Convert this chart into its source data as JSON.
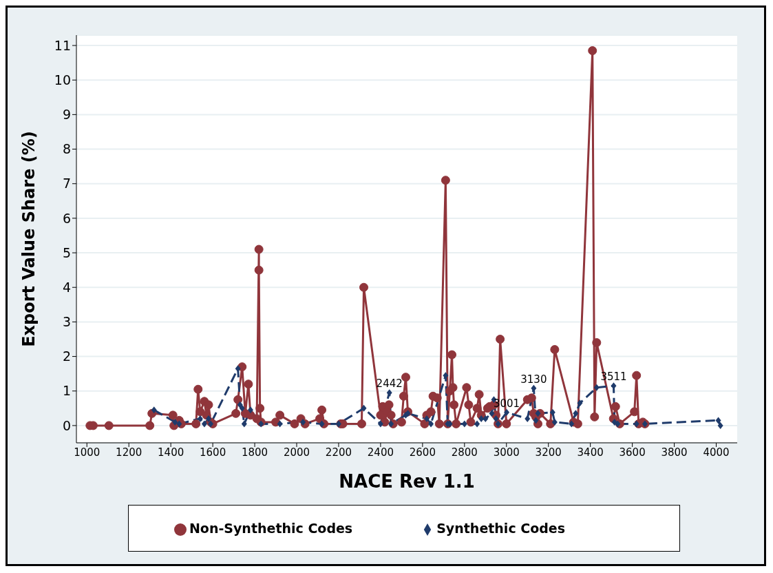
{
  "chart_data": {
    "type": "line",
    "xlabel": "NACE Rev 1.1",
    "ylabel": "Export Value Share  (%)",
    "xlim": [
      950,
      4100
    ],
    "xticks": [
      1000,
      1200,
      1400,
      1600,
      1800,
      2000,
      2200,
      2400,
      2600,
      2800,
      3000,
      3200,
      3400,
      3600,
      3800,
      4000
    ],
    "ylim": [
      -0.5,
      11.3
    ],
    "yticks": [
      0,
      1,
      2,
      3,
      4,
      5,
      6,
      7,
      8,
      9,
      10,
      11
    ],
    "grid": "y",
    "legend": "bottom",
    "series": [
      {
        "name": "Non-Synthethic Codes",
        "color": "#90353b",
        "marker": "circle",
        "line_style": "solid",
        "x": [
          1015,
          1030,
          1105,
          1300,
          1310,
          1410,
          1415,
          1440,
          1450,
          1520,
          1530,
          1540,
          1560,
          1570,
          1580,
          1590,
          1600,
          1710,
          1720,
          1740,
          1755,
          1770,
          1780,
          1810,
          1820,
          1820,
          1825,
          1830,
          1900,
          1920,
          1990,
          2020,
          2040,
          2110,
          2120,
          2130,
          2210,
          2220,
          2310,
          2320,
          2400,
          2410,
          2420,
          2430,
          2440,
          2450,
          2460,
          2500,
          2510,
          2520,
          2530,
          2610,
          2620,
          2640,
          2650,
          2670,
          2680,
          2710,
          2720,
          2730,
          2740,
          2745,
          2750,
          2760,
          2810,
          2820,
          2830,
          2860,
          2870,
          2880,
          2910,
          2920,
          2940,
          2950,
          2960,
          2970,
          3000,
          3100,
          3120,
          3130,
          3140,
          3150,
          3160,
          3210,
          3230,
          3320,
          3340,
          3410,
          3420,
          3430,
          3510,
          3520,
          3540,
          3610,
          3620,
          3630,
          3650,
          3660
        ],
        "values": [
          0,
          0,
          0,
          0,
          0.35,
          0.3,
          0,
          0.15,
          0.05,
          0.05,
          1.05,
          0.4,
          0.7,
          0.3,
          0.6,
          0.1,
          0.05,
          0.35,
          0.75,
          1.7,
          0.35,
          1.2,
          0.3,
          0.2,
          5.1,
          4.5,
          0.5,
          0.1,
          0.1,
          0.3,
          0.05,
          0.2,
          0.05,
          0.2,
          0.45,
          0.05,
          0.05,
          0.05,
          0.05,
          4.0,
          0.3,
          0.55,
          0.1,
          0.4,
          0.6,
          0.3,
          0.05,
          0.1,
          0.85,
          1.4,
          0.4,
          0.05,
          0.3,
          0.4,
          0.85,
          0.8,
          0.05,
          7.1,
          0.05,
          1.0,
          2.05,
          1.1,
          0.6,
          0.05,
          1.1,
          0.6,
          0.1,
          0.5,
          0.9,
          0.3,
          0.5,
          0.55,
          0.6,
          0.3,
          0.05,
          2.5,
          0.05,
          0.75,
          0.8,
          0.35,
          0.25,
          0.05,
          0.35,
          0.05,
          2.2,
          0.1,
          0.05,
          10.85,
          0.25,
          2.4,
          0.2,
          0.55,
          0.05,
          0.4,
          1.45,
          0.05,
          0.1,
          0.05
        ]
      },
      {
        "name": "Synthethic Codes",
        "color": "#1f3b6b",
        "marker": "diamond",
        "line_style": "dashed",
        "x": [
          1320,
          1420,
          1440,
          1540,
          1560,
          1580,
          1590,
          1720,
          1730,
          1740,
          1750,
          1780,
          1830,
          1920,
          2030,
          2120,
          2200,
          2320,
          2400,
          2442,
          2450,
          2520,
          2530,
          2620,
          2640,
          2710,
          2720,
          2730,
          2800,
          2860,
          2880,
          2900,
          2930,
          2940,
          2950,
          2960,
          3001,
          3100,
          3130,
          3140,
          3150,
          3220,
          3230,
          3310,
          3330,
          3350,
          3430,
          3511,
          3515,
          3530,
          3620,
          3660,
          4010,
          4020
        ],
        "values": [
          0.45,
          0.1,
          0.05,
          0.2,
          0.05,
          0.2,
          0.05,
          1.65,
          0.6,
          0.5,
          0.05,
          0.45,
          0.05,
          0.05,
          0.1,
          0.05,
          0.05,
          0.5,
          0.05,
          0.95,
          0.05,
          0.3,
          0.35,
          0.2,
          0.05,
          1.45,
          0.05,
          0.05,
          0.05,
          0.05,
          0.2,
          0.2,
          0.35,
          0.75,
          0.2,
          0.05,
          0.38,
          0.2,
          1.08,
          0.15,
          0.35,
          0.38,
          0.1,
          0.05,
          0.35,
          0.65,
          1.1,
          1.15,
          0.1,
          0.05,
          0.05,
          0.05,
          0.15,
          0
        ]
      }
    ],
    "annotations": [
      {
        "text": "2442",
        "x": 2442,
        "y": 0.95
      },
      {
        "text": "3001",
        "x": 3001,
        "y": 0.38
      },
      {
        "text": "3130",
        "x": 3130,
        "y": 1.08
      },
      {
        "text": "3511",
        "x": 3511,
        "y": 1.15
      }
    ]
  }
}
